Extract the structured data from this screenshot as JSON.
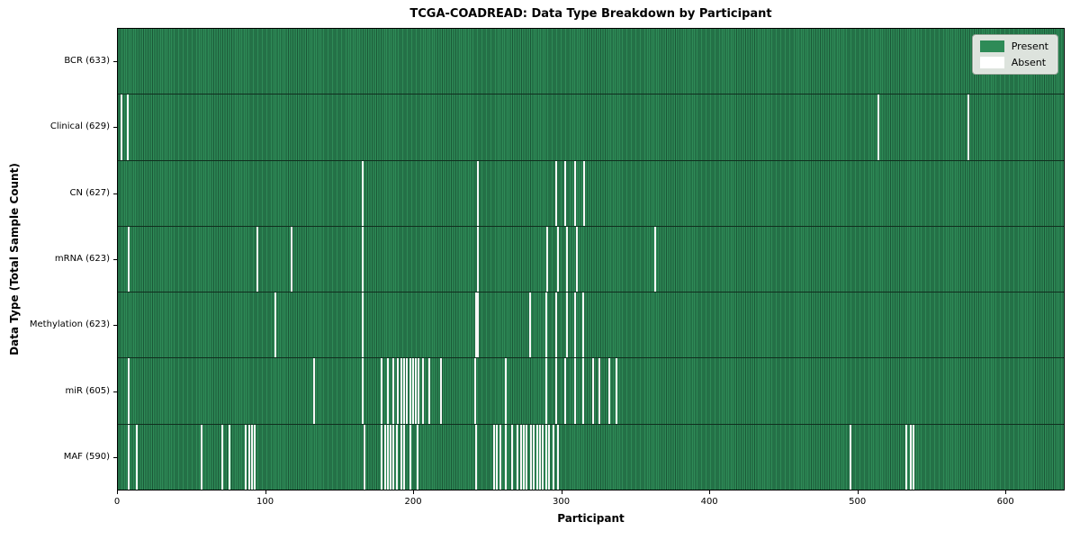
{
  "title": "TCGA-COADREAD: Data Type Breakdown by Participant",
  "chart_data": {
    "type": "heatmap",
    "title": "TCGA-COADREAD: Data Type Breakdown by Participant",
    "xlabel": "Participant",
    "ylabel": "Data Type (Total Sample Count)",
    "total_participants": 633,
    "x_axis": {
      "ticks": [
        0,
        100,
        200,
        300,
        400,
        500,
        600
      ],
      "max": 640
    },
    "grid": false,
    "colors": {
      "present": "#2e8b57",
      "present_edge": "#1b5737",
      "absent": "#f7f7f7"
    },
    "legend": {
      "position": "top-right",
      "entries": [
        {
          "label": "Present",
          "color": "#2e8b57"
        },
        {
          "label": "Absent",
          "color": "#ffffff"
        }
      ]
    },
    "rows": [
      {
        "name": "BCR",
        "count": 633,
        "absent": []
      },
      {
        "name": "Clinical",
        "count": 629,
        "absent": [
          2,
          6,
          514,
          575
        ]
      },
      {
        "name": "CN",
        "count": 627,
        "absent": [
          165,
          243,
          296,
          302,
          309,
          315
        ]
      },
      {
        "name": "mRNA",
        "count": 623,
        "absent": [
          7,
          94,
          117,
          165,
          243,
          290,
          297,
          303,
          310,
          363
        ]
      },
      {
        "name": "Methylation",
        "count": 623,
        "absent": [
          106,
          165,
          242,
          243,
          278,
          289,
          296,
          303,
          309,
          314
        ]
      },
      {
        "name": "miR",
        "count": 605,
        "absent": [
          7,
          132,
          165,
          178,
          182,
          186,
          189,
          191,
          193,
          195,
          197,
          199,
          201,
          203,
          206,
          210,
          218,
          241,
          262,
          289,
          296,
          302,
          309,
          314,
          321,
          325,
          332,
          337
        ]
      },
      {
        "name": "MAF",
        "count": 590,
        "absent": [
          7,
          12,
          56,
          70,
          75,
          86,
          88,
          90,
          92,
          166,
          178,
          180,
          182,
          184,
          186,
          188,
          191,
          193,
          197,
          202,
          242,
          254,
          256,
          258,
          262,
          266,
          270,
          272,
          274,
          276,
          279,
          281,
          283,
          285,
          287,
          289,
          291,
          294,
          297,
          495,
          533,
          536,
          538
        ]
      }
    ]
  }
}
